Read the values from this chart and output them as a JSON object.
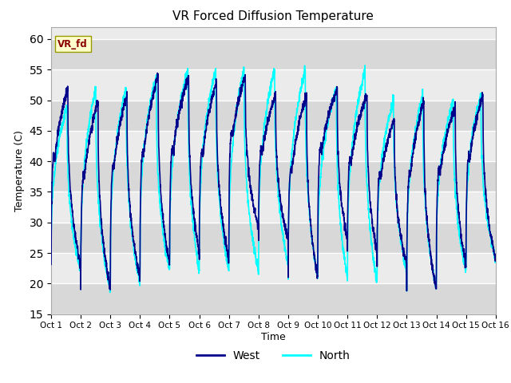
{
  "title": "VR Forced Diffusion Temperature",
  "xlabel": "Time",
  "ylabel": "Temperature (C)",
  "ylim": [
    15,
    62
  ],
  "xlim": [
    0,
    15
  ],
  "yticks": [
    15,
    20,
    25,
    30,
    35,
    40,
    45,
    50,
    55,
    60
  ],
  "xtick_labels": [
    "Oct 1",
    "Oct 2",
    "Oct 3",
    "Oct 4",
    "Oct 5",
    "Oct 6",
    "Oct 7",
    "Oct 8",
    "Oct 9",
    "Oct 10",
    "Oct 11",
    "Oct 12",
    "Oct 13",
    "Oct 14",
    "Oct 15",
    "Oct 16"
  ],
  "xtick_positions": [
    0,
    1,
    2,
    3,
    4,
    5,
    6,
    7,
    8,
    9,
    10,
    11,
    12,
    13,
    14,
    15
  ],
  "west_color": "#00008B",
  "north_color": "#00FFFF",
  "bg_color": "#E0E0E0",
  "band_color_light": "#EBEBEB",
  "band_color_dark": "#D8D8D8",
  "label_box_text": "VR_fd",
  "label_box_bg": "#FFFFCC",
  "label_box_fg": "#8B0000",
  "legend_west": "West",
  "legend_north": "North",
  "west_linewidth": 1.2,
  "north_linewidth": 1.2,
  "peak_values_west": [
    52,
    50,
    51,
    54,
    54,
    53,
    54,
    51,
    51,
    52,
    51,
    47,
    50,
    49,
    51
  ],
  "peak_values_north": [
    49,
    52,
    52,
    54,
    55,
    55,
    55,
    55,
    55,
    52,
    55,
    50,
    51,
    50,
    51
  ],
  "trough_values_west": [
    23,
    19,
    21,
    23,
    25,
    24,
    29,
    27,
    21,
    27,
    25,
    23,
    19,
    23,
    24
  ],
  "trough_values_north": [
    22,
    19,
    20,
    22,
    22,
    22,
    22,
    23,
    21,
    21,
    20,
    22,
    19,
    22,
    24
  ]
}
